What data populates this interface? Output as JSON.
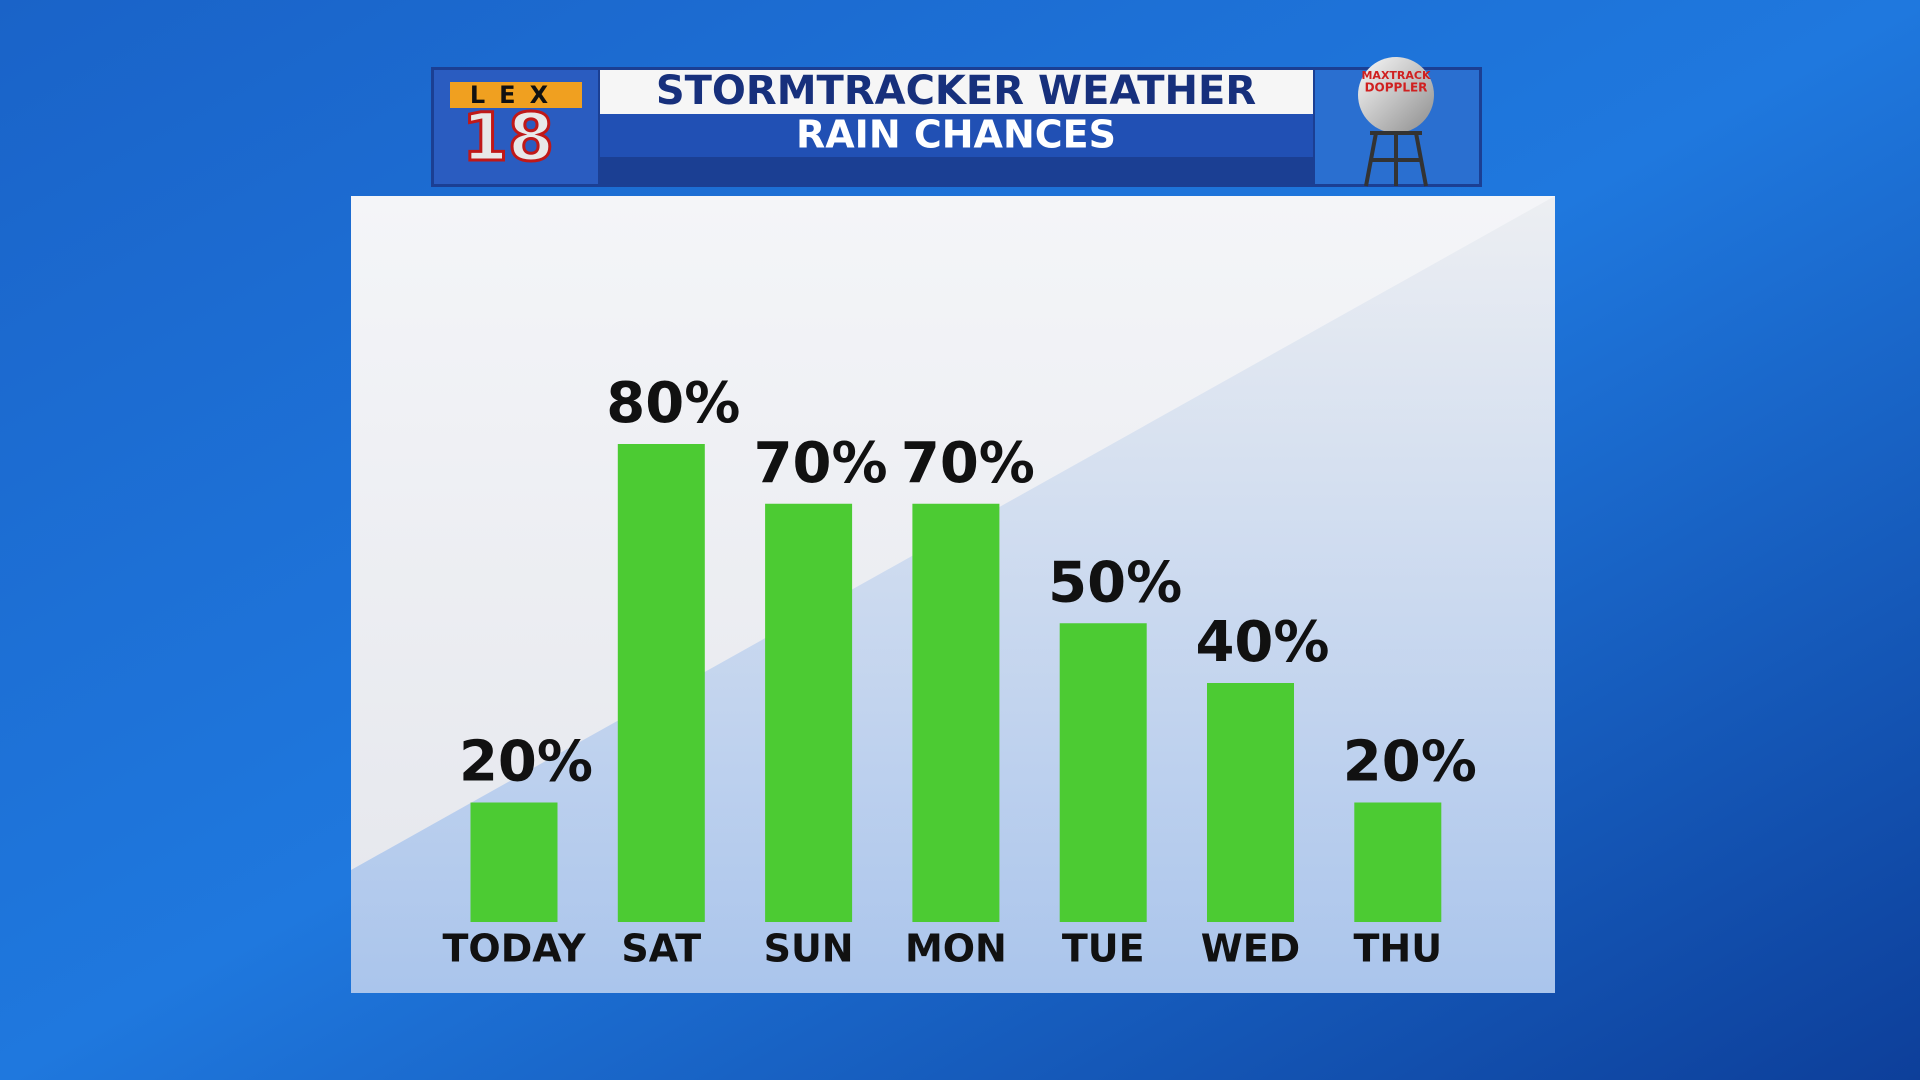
{
  "branding": {
    "station": "LEX",
    "number": "18",
    "radar_top": "MAXTRACK",
    "radar_bottom": "DOPPLER"
  },
  "chart_data": {
    "type": "bar",
    "title": "STORMTRACKER WEATHER",
    "subtitle": "RAIN CHANCES",
    "categories": [
      "TODAY",
      "SAT",
      "SUN",
      "MON",
      "TUE",
      "WED",
      "THU"
    ],
    "values": [
      20,
      80,
      70,
      70,
      50,
      40,
      20
    ],
    "value_labels": [
      "20%",
      "80%",
      "70%",
      "70%",
      "50%",
      "40%",
      "20%"
    ],
    "color": "#4ccb33"
  }
}
